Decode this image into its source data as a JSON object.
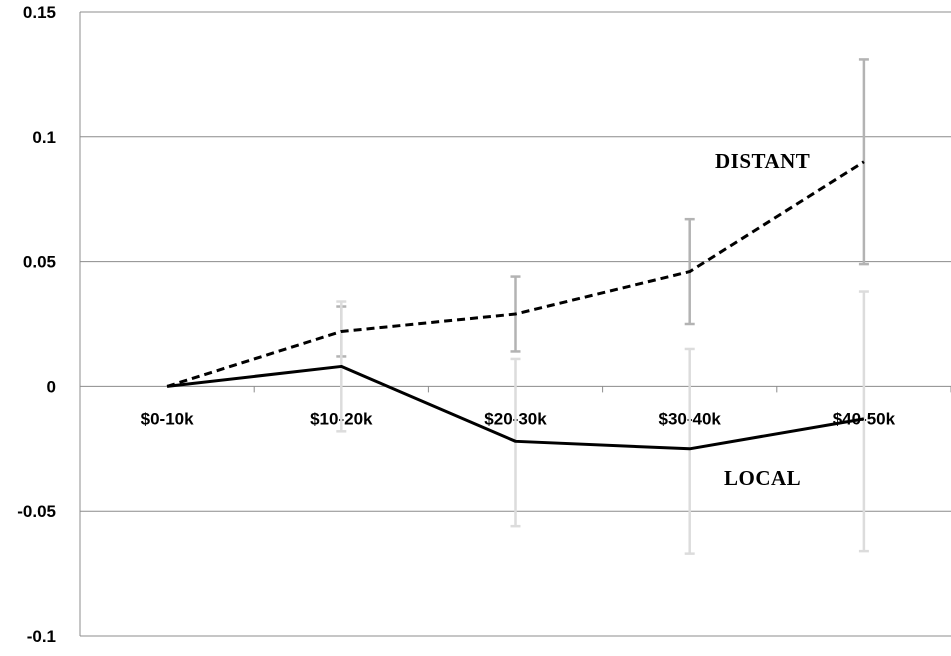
{
  "chart_data": {
    "type": "line",
    "title": "",
    "xlabel": "",
    "ylabel": "",
    "categories": [
      "$0-10k",
      "$10-20k",
      "$20-30k",
      "$30-40k",
      "$40-50k"
    ],
    "ylim": [
      -0.1,
      0.15
    ],
    "yticks": [
      0.15,
      0.1,
      0.05,
      0,
      -0.05,
      -0.1
    ],
    "ytick_labels": [
      "0.15",
      "0.1",
      "0.05",
      "0",
      "-0.05",
      "-0.1"
    ],
    "grid": true,
    "series": [
      {
        "name": "DISTANT",
        "style": "dashed",
        "color": "#000000",
        "errorbar_color": "#b3b3b3",
        "values": [
          0,
          0.022,
          0.029,
          0.046,
          0.09
        ],
        "error_low": [
          null,
          0.012,
          0.014,
          0.025,
          0.049
        ],
        "error_high": [
          null,
          0.032,
          0.044,
          0.067,
          0.131
        ]
      },
      {
        "name": "LOCAL",
        "style": "solid",
        "color": "#000000",
        "errorbar_color": "#dcdcdc",
        "values": [
          0,
          0.008,
          -0.022,
          -0.025,
          -0.013
        ],
        "error_low": [
          null,
          -0.018,
          -0.056,
          -0.067,
          -0.066
        ],
        "error_high": [
          null,
          0.034,
          0.011,
          0.015,
          0.038
        ]
      }
    ]
  }
}
